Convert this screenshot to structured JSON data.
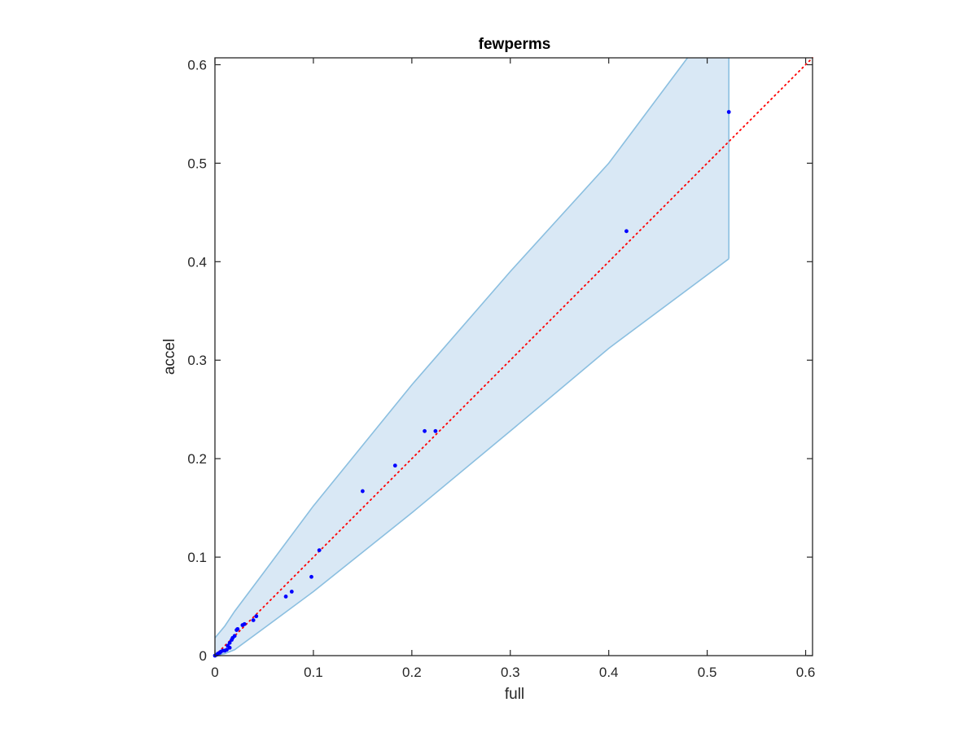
{
  "chart_data": {
    "type": "scatter",
    "title": "fewperms",
    "xlabel": "full",
    "ylabel": "accel",
    "xlim": [
      0,
      0.607
    ],
    "ylim": [
      0,
      0.607
    ],
    "xticks": [
      "0",
      "0.1",
      "0.2",
      "0.3",
      "0.4",
      "0.5",
      "0.6"
    ],
    "yticks": [
      "0",
      "0.1",
      "0.2",
      "0.3",
      "0.4",
      "0.5",
      "0.6"
    ],
    "grid": false,
    "box": true,
    "colors": {
      "points": "#0000ff",
      "reference_line": "#ff0000",
      "band_fill": "#d9e8f5",
      "band_edge": "#8bbfe0",
      "axes": "#262626"
    },
    "reference_line": {
      "style": "dotted",
      "x": [
        0,
        0.607
      ],
      "y": [
        0,
        0.607
      ]
    },
    "band": {
      "upper": [
        [
          0,
          0.018
        ],
        [
          0.01,
          0.03
        ],
        [
          0.02,
          0.045
        ],
        [
          0.05,
          0.085
        ],
        [
          0.1,
          0.152
        ],
        [
          0.2,
          0.275
        ],
        [
          0.3,
          0.39
        ],
        [
          0.4,
          0.5
        ],
        [
          0.48,
          0.607
        ]
      ],
      "right_edge_top": [
        0.522,
        0.607
      ],
      "lower": [
        [
          0,
          0
        ],
        [
          0.01,
          0.002
        ],
        [
          0.02,
          0.006
        ],
        [
          0.05,
          0.028
        ],
        [
          0.1,
          0.065
        ],
        [
          0.2,
          0.145
        ],
        [
          0.3,
          0.228
        ],
        [
          0.4,
          0.312
        ],
        [
          0.522,
          0.403
        ]
      ]
    },
    "series": [
      {
        "points": [
          [
            0.0,
            0.0
          ],
          [
            0.002,
            0.001
          ],
          [
            0.003,
            0.002
          ],
          [
            0.005,
            0.003
          ],
          [
            0.006,
            0.004
          ],
          [
            0.008,
            0.005
          ],
          [
            0.01,
            0.005
          ],
          [
            0.012,
            0.006
          ],
          [
            0.015,
            0.008
          ],
          [
            0.013,
            0.01
          ],
          [
            0.015,
            0.013
          ],
          [
            0.017,
            0.016
          ],
          [
            0.018,
            0.018
          ],
          [
            0.02,
            0.02
          ],
          [
            0.022,
            0.026
          ],
          [
            0.023,
            0.027
          ],
          [
            0.028,
            0.031
          ],
          [
            0.03,
            0.032
          ],
          [
            0.039,
            0.036
          ],
          [
            0.042,
            0.04
          ],
          [
            0.072,
            0.06
          ],
          [
            0.078,
            0.065
          ],
          [
            0.098,
            0.08
          ],
          [
            0.106,
            0.107
          ],
          [
            0.15,
            0.167
          ],
          [
            0.183,
            0.193
          ],
          [
            0.213,
            0.228
          ],
          [
            0.224,
            0.228
          ],
          [
            0.418,
            0.431
          ],
          [
            0.522,
            0.552
          ]
        ]
      }
    ]
  }
}
